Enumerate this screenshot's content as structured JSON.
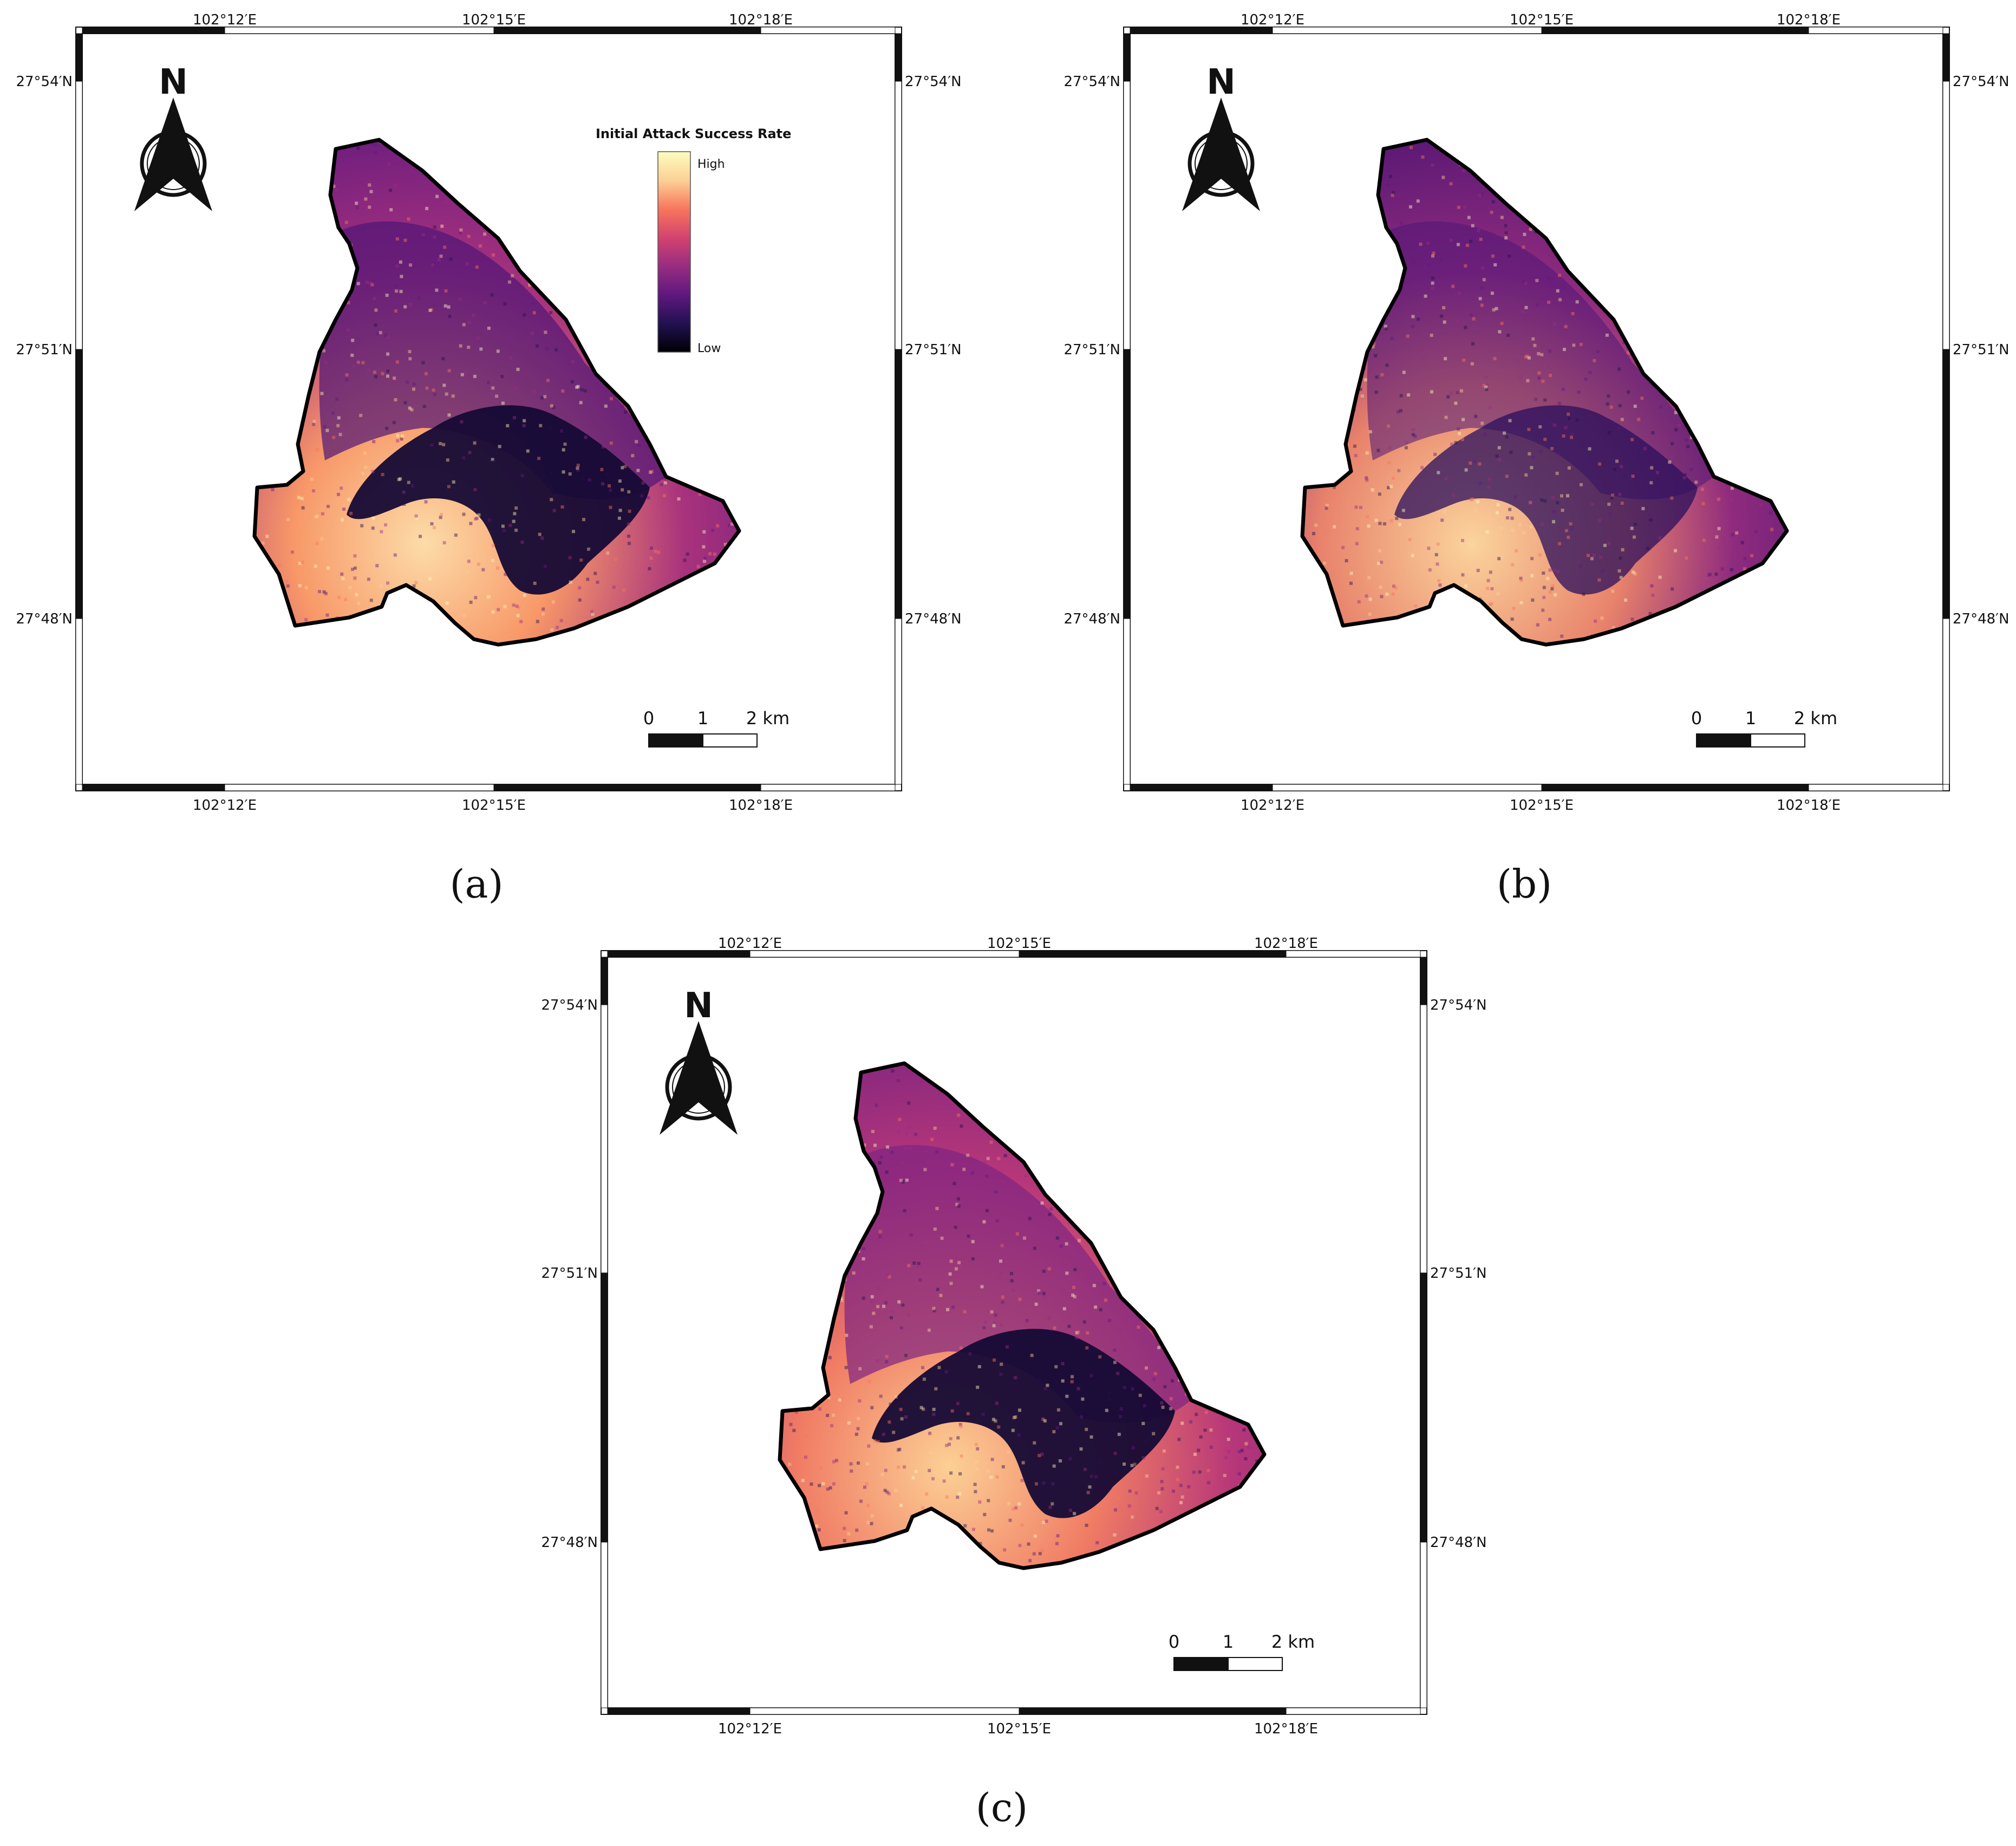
{
  "coords": {
    "top_lon": [
      "102°12′E",
      "102°15′E",
      "102°18′E"
    ],
    "bottom_lon": [
      "102°12′E",
      "102°15′E",
      "102°18′E"
    ],
    "left_lat": [
      "27°54′N",
      "27°51′N",
      "27°48′N"
    ],
    "right_lat": [
      "27°54′N",
      "27°51′N",
      "27°48′N"
    ]
  },
  "north_arrow": {
    "letter": "N",
    "icon": "north-arrow-icon"
  },
  "scalebar": {
    "labels": [
      "0",
      "1",
      "2 km"
    ]
  },
  "legend": {
    "title": "Initial Attack Success Rate",
    "high": "High",
    "low": "Low",
    "colors": [
      "#fcfdbf",
      "#fcd095",
      "#f8765c",
      "#d3436e",
      "#982d80",
      "#5f187f",
      "#221150",
      "#000004"
    ]
  },
  "panels": [
    {
      "id": "a",
      "label": "(a)",
      "has_legend": true
    },
    {
      "id": "b",
      "label": "(b)",
      "has_legend": false
    },
    {
      "id": "c",
      "label": "(c)",
      "has_legend": false
    }
  ]
}
